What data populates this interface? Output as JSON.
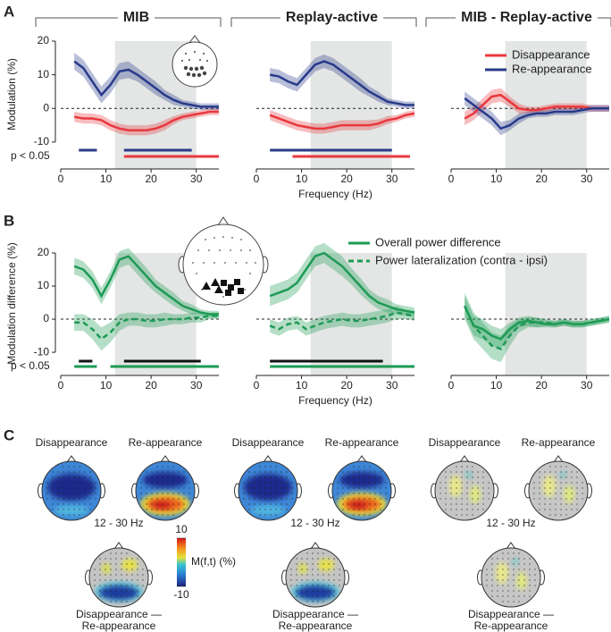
{
  "rows": [
    {
      "label": "A",
      "ylabel": "Modulation (%)",
      "xlabel": "Frequency (Hz)",
      "p_label": "p < 0.05"
    },
    {
      "label": "B",
      "ylabel": "Modulation difference (%)",
      "xlabel": "Frequency (Hz)",
      "p_label": "p < 0.05"
    }
  ],
  "chart_data": [
    {
      "type": "line",
      "title": "MIB",
      "x": [
        3,
        5,
        7,
        9,
        11,
        13,
        15,
        17,
        19,
        21,
        23,
        25,
        27,
        29,
        31,
        33,
        35
      ],
      "xlim": [
        0,
        35
      ],
      "xticks": [
        0,
        10,
        20,
        30
      ],
      "ylim": [
        -18,
        20
      ],
      "yticks": [
        -10,
        0,
        10,
        20
      ],
      "highlight": [
        12,
        30
      ],
      "zero_line": true,
      "series": [
        {
          "color": "#e8383d",
          "values": [
            -2.5,
            -3,
            -3,
            -3.5,
            -5,
            -6,
            -6.5,
            -6.5,
            -6.5,
            -6,
            -5,
            -3.5,
            -2.5,
            -2,
            -1.5,
            -1,
            -1
          ],
          "error": [
            1.5,
            1.5,
            1.5,
            1.5,
            1.5,
            1.5,
            1.5,
            1.5,
            1.5,
            1.5,
            1.5,
            1.2,
            1,
            1,
            1,
            1,
            1
          ]
        },
        {
          "color": "#283a8a",
          "values": [
            14,
            12,
            8,
            4,
            7,
            11,
            11.5,
            10,
            8,
            6,
            4,
            2.5,
            1.5,
            1,
            0.5,
            0.5,
            0.5
          ],
          "error": [
            2.5,
            2.5,
            2.5,
            2.5,
            2.5,
            2.5,
            2.5,
            2,
            2,
            2,
            1.5,
            1.5,
            1,
            1,
            1,
            1,
            1
          ]
        }
      ],
      "sig_bars": [
        {
          "color": "#283a8a",
          "ranges": [
            [
              4,
              8
            ],
            [
              14,
              29
            ]
          ]
        },
        {
          "color": "#e8383d",
          "ranges": [
            [
              14,
              35
            ]
          ]
        }
      ]
    },
    {
      "type": "line",
      "title": "Replay-active",
      "x": [
        3,
        5,
        7,
        9,
        11,
        13,
        15,
        17,
        19,
        21,
        23,
        25,
        27,
        29,
        31,
        33,
        35
      ],
      "xlim": [
        0,
        35
      ],
      "xticks": [
        0,
        10,
        20,
        30
      ],
      "ylim": [
        -18,
        20
      ],
      "highlight": [
        12,
        30
      ],
      "zero_line": true,
      "series": [
        {
          "color": "#e8383d",
          "values": [
            -2,
            -3,
            -4,
            -5,
            -5.5,
            -6,
            -6,
            -5.5,
            -5,
            -5,
            -5,
            -5,
            -4.5,
            -3.5,
            -3,
            -2,
            -1.5
          ],
          "error": [
            1.5,
            1.5,
            1.5,
            1.5,
            1.5,
            1.5,
            1.5,
            1.5,
            1.5,
            1.5,
            1.5,
            1.5,
            1.2,
            1.2,
            1,
            1,
            1
          ]
        },
        {
          "color": "#283a8a",
          "values": [
            10,
            9.5,
            8,
            7,
            10,
            13,
            14,
            13,
            11,
            9,
            7,
            5,
            3.5,
            2,
            1.5,
            1,
            1
          ],
          "error": [
            2,
            2,
            2,
            2,
            2,
            2,
            2,
            2,
            2,
            2,
            2,
            1.5,
            1.5,
            1,
            1,
            1,
            1
          ]
        }
      ],
      "sig_bars": [
        {
          "color": "#283a8a",
          "ranges": [
            [
              3,
              30
            ]
          ]
        },
        {
          "color": "#e8383d",
          "ranges": [
            [
              8,
              34
            ]
          ]
        }
      ]
    },
    {
      "type": "line",
      "title": "MIB - Replay-active",
      "x": [
        3,
        5,
        7,
        9,
        11,
        13,
        15,
        17,
        19,
        21,
        23,
        25,
        27,
        29,
        31,
        33,
        35
      ],
      "xlim": [
        0,
        35
      ],
      "xticks": [
        0,
        10,
        20,
        30
      ],
      "ylim": [
        -18,
        20
      ],
      "highlight": [
        12,
        30
      ],
      "zero_line": true,
      "legend": "upper right",
      "series": [
        {
          "name": "Disappearance",
          "color": "#e8383d",
          "values": [
            -3,
            -1.5,
            1,
            3.5,
            4,
            2,
            0,
            -0.5,
            -0.5,
            0,
            0.5,
            0.5,
            0.5,
            0.5,
            0,
            0,
            0
          ],
          "error": [
            2,
            2,
            2,
            2,
            2,
            1.5,
            1.5,
            1,
            1,
            1,
            1,
            1,
            1,
            1,
            1,
            1,
            1
          ]
        },
        {
          "name": "Re-appearance",
          "color": "#283a8a",
          "values": [
            3,
            1,
            -1,
            -3,
            -6,
            -5,
            -3,
            -2,
            -1.5,
            -1.5,
            -1,
            -1,
            -1,
            -0.5,
            0,
            0,
            0
          ],
          "error": [
            2,
            2,
            2,
            2,
            2,
            1.5,
            1.5,
            1,
            1,
            1,
            1,
            1,
            1,
            1,
            1,
            1,
            1
          ]
        }
      ]
    },
    {
      "type": "line",
      "x": [
        3,
        5,
        7,
        9,
        11,
        13,
        15,
        17,
        19,
        21,
        23,
        25,
        27,
        29,
        31,
        33,
        35
      ],
      "xlim": [
        0,
        35
      ],
      "xticks": [
        0,
        10,
        20,
        30
      ],
      "ylim": [
        -17,
        20
      ],
      "yticks": [
        -10,
        0,
        10,
        20
      ],
      "highlight": [
        12,
        30
      ],
      "zero_line": true,
      "series": [
        {
          "color": "#1e9a55",
          "values": [
            16,
            15,
            12,
            7,
            12,
            18,
            19,
            16,
            13,
            10,
            8,
            6,
            4,
            3,
            2,
            1.5,
            1.5
          ],
          "error": [
            2.5,
            2.5,
            2.5,
            2.5,
            2.5,
            2.5,
            2.5,
            2.5,
            2.5,
            2,
            2,
            2,
            1.5,
            1.5,
            1,
            1,
            1
          ]
        },
        {
          "color": "#1e9a55",
          "dash": true,
          "values": [
            -1,
            -1,
            -3,
            -6,
            -4,
            -1,
            0,
            0,
            -0.5,
            -0.5,
            0,
            0,
            0,
            0.5,
            0.5,
            1,
            1
          ],
          "error": [
            2.5,
            2.5,
            3,
            3.5,
            3,
            2.5,
            2,
            2,
            2,
            2,
            2,
            1.5,
            1.5,
            1.5,
            1.5,
            1,
            1
          ]
        }
      ],
      "sig_bars": [
        {
          "color": "#111111",
          "ranges": [
            [
              4,
              7
            ],
            [
              14,
              31
            ]
          ]
        },
        {
          "color": "#1e9a55",
          "ranges": [
            [
              3,
              8
            ],
            [
              11,
              35
            ]
          ]
        }
      ]
    },
    {
      "type": "line",
      "x": [
        3,
        5,
        7,
        9,
        11,
        13,
        15,
        17,
        19,
        21,
        23,
        25,
        27,
        29,
        31,
        33,
        35
      ],
      "xlim": [
        0,
        35
      ],
      "xticks": [
        0,
        10,
        20,
        30
      ],
      "ylim": [
        -17,
        20
      ],
      "highlight": [
        12,
        30
      ],
      "zero_line": true,
      "legend": "upper right",
      "series": [
        {
          "name": "Overall power difference",
          "color": "#1e9a55",
          "values": [
            7,
            8,
            9,
            11,
            15,
            19,
            20,
            18,
            16,
            13,
            10,
            7,
            5,
            4,
            3,
            2.5,
            2
          ],
          "error": [
            3,
            3,
            3,
            3,
            3,
            3,
            3,
            3,
            3,
            2.5,
            2.5,
            2,
            2,
            2,
            1.5,
            1.5,
            1.5
          ]
        },
        {
          "name": "Power lateralization (contra - ipsi)",
          "color": "#1e9a55",
          "dash": true,
          "values": [
            -2,
            -3,
            -1.5,
            -1,
            -3,
            -2,
            -1,
            -0.5,
            0,
            -0.5,
            -0.5,
            0,
            0.5,
            1,
            2,
            1.5,
            1
          ],
          "error": [
            2,
            2,
            2,
            2,
            2,
            2,
            2,
            2,
            2,
            2,
            2,
            2,
            2,
            2,
            2,
            1.5,
            1.5
          ]
        }
      ],
      "sig_bars": [
        {
          "color": "#111111",
          "ranges": [
            [
              3,
              28
            ]
          ]
        },
        {
          "color": "#1e9a55",
          "ranges": [
            [
              3,
              35
            ]
          ]
        }
      ]
    },
    {
      "type": "line",
      "x": [
        3,
        5,
        7,
        9,
        11,
        13,
        15,
        17,
        19,
        21,
        23,
        25,
        27,
        29,
        31,
        33,
        35
      ],
      "xlim": [
        0,
        35
      ],
      "xticks": [
        0,
        10,
        20,
        30
      ],
      "ylim": [
        -17,
        20
      ],
      "highlight": [
        12,
        30
      ],
      "zero_line": true,
      "series": [
        {
          "color": "#1e9a55",
          "values": [
            4,
            -2,
            -3,
            -5,
            -6,
            -3,
            -1,
            -0.5,
            -1,
            -1.5,
            -1.5,
            -1,
            -1.5,
            -1.5,
            -1,
            -0.5,
            0
          ],
          "error": [
            3,
            3,
            3,
            3,
            3,
            2,
            1.5,
            1.5,
            1.5,
            1,
            1,
            1,
            1,
            1,
            1,
            1,
            1
          ]
        },
        {
          "color": "#1e9a55",
          "dash": true,
          "values": [
            4,
            -2,
            -5,
            -8,
            -9,
            -5,
            -2,
            -1,
            -1,
            -1,
            -1.5,
            -1,
            -1.5,
            -1.5,
            -1,
            -0.5,
            0
          ],
          "error": [
            4,
            4,
            4,
            4,
            4,
            3,
            2,
            1.5,
            1.5,
            1,
            1,
            1,
            1,
            1,
            1,
            1,
            1
          ]
        }
      ]
    }
  ],
  "panel_c": {
    "label": "C",
    "groups": [
      {
        "top_labels": [
          "Disappearance",
          "Re-appearance"
        ],
        "band": "12 - 30 Hz",
        "diff_label": [
          "Disappearance —",
          "Re-appearance"
        ]
      },
      {
        "top_labels": [
          "Disappearance",
          "Re-appearance"
        ],
        "band": "12 - 30 Hz",
        "diff_label": [
          "Disappearance —",
          "Re-appearance"
        ]
      },
      {
        "top_labels": [
          "Disappearance",
          "Re-appearance"
        ],
        "band": "12 - 30 Hz",
        "diff_label": [
          "Disappearance —",
          "Re-appearance"
        ]
      }
    ],
    "colorbar": {
      "label": "M(f,t) (%)",
      "clim": [
        -10,
        10
      ],
      "ticks": [
        -10,
        10
      ]
    }
  }
}
